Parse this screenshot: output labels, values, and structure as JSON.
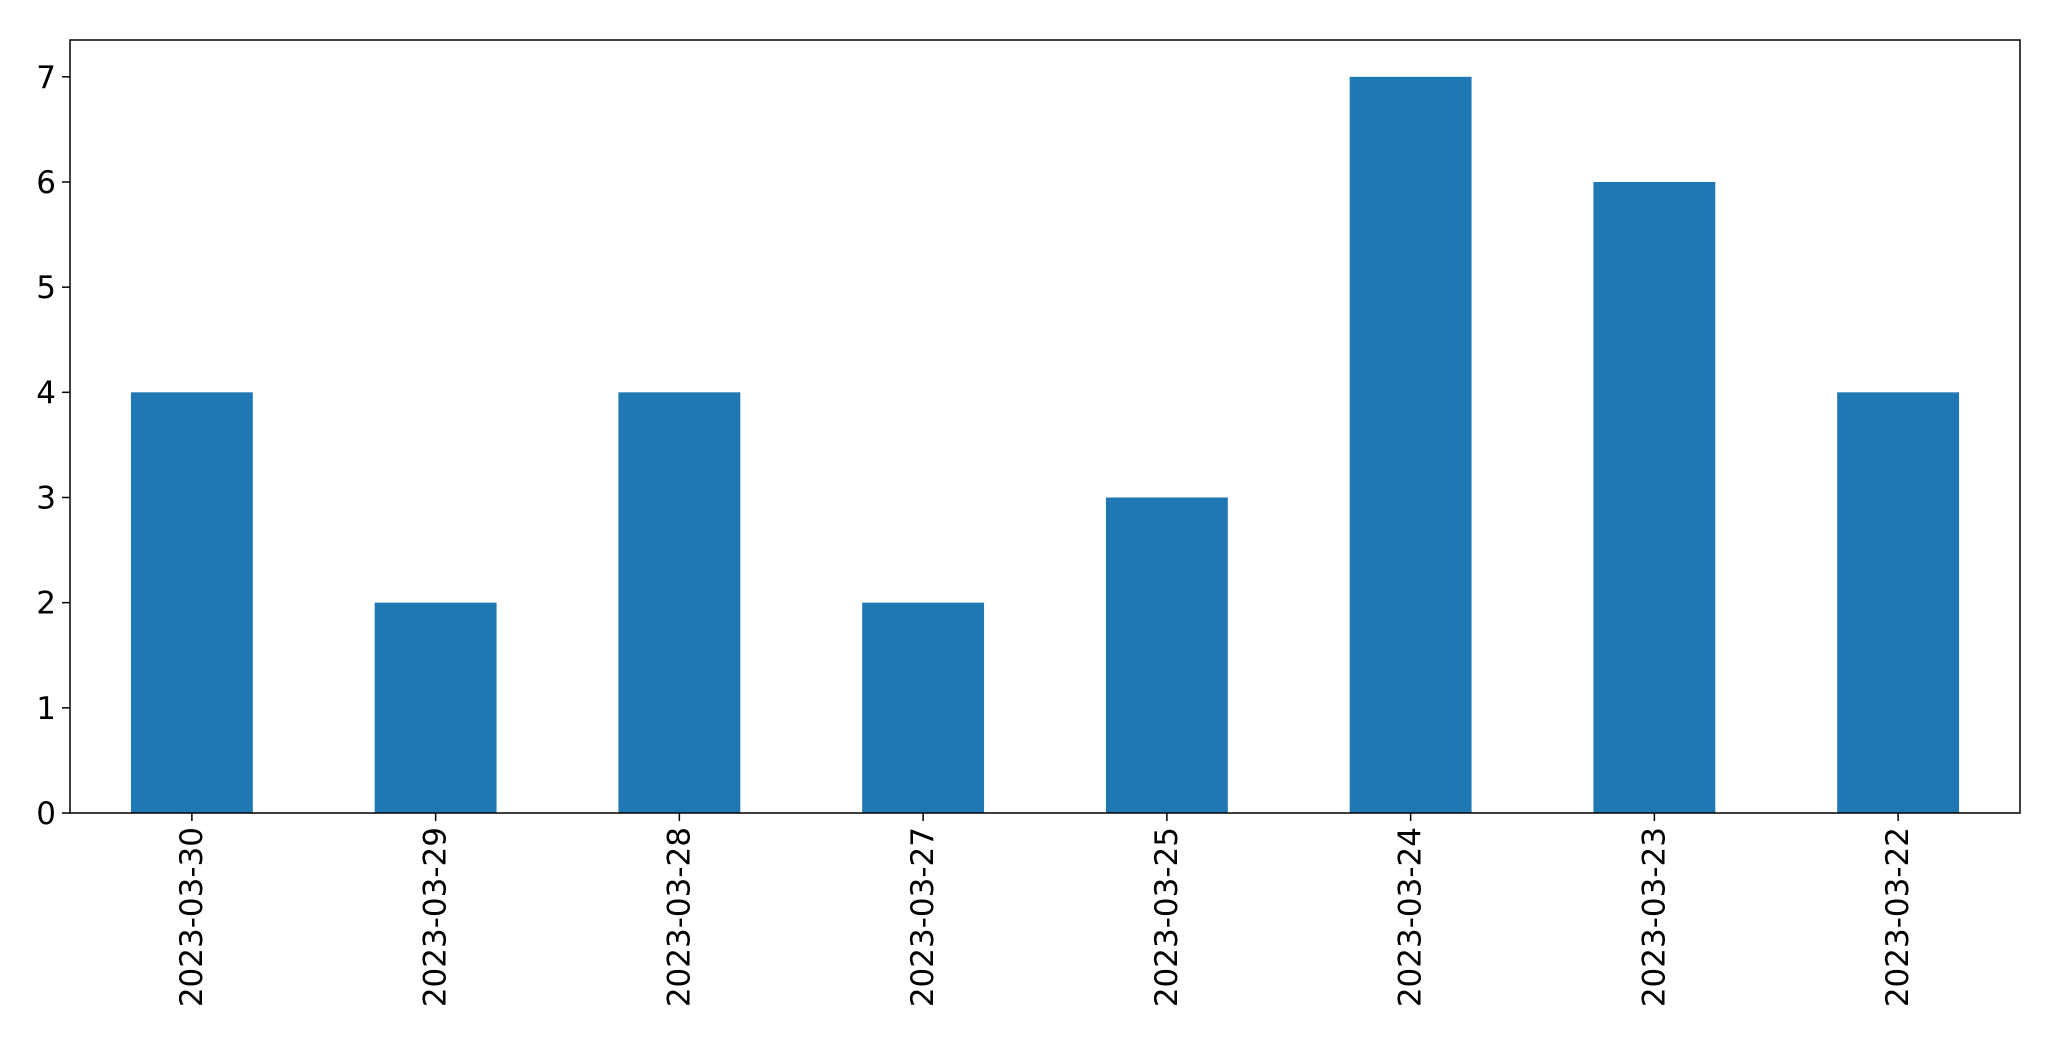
{
  "chart_data": {
    "type": "bar",
    "title": "",
    "xlabel": "",
    "ylabel": "",
    "categories": [
      "2023-03-30",
      "2023-03-29",
      "2023-03-28",
      "2023-03-27",
      "2023-03-25",
      "2023-03-24",
      "2023-03-23",
      "2023-03-22"
    ],
    "values": [
      4,
      2,
      4,
      2,
      3,
      7,
      6,
      4
    ],
    "ylim": [
      0,
      7.35
    ],
    "yticks": [
      0,
      1,
      2,
      3,
      4,
      5,
      6,
      7
    ],
    "bar_color": "#1f77b4",
    "grid": false,
    "legend": "none"
  }
}
